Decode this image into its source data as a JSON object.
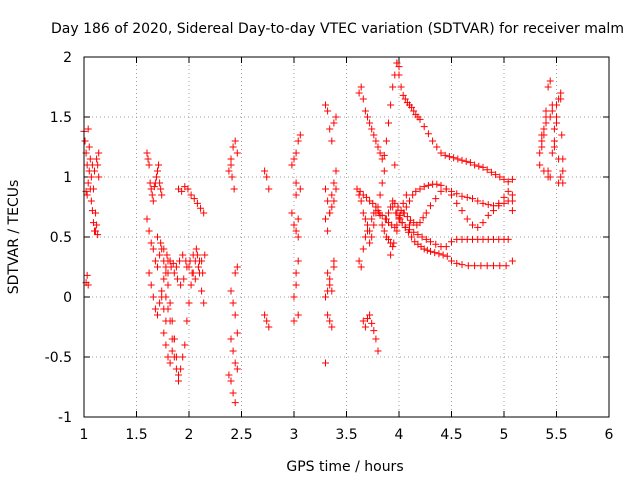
{
  "chart_data": {
    "type": "scatter",
    "title": "Day 186 of 2020, Sidereal Day-to-day VTEC variation (SDTVAR) for receiver malm",
    "xlabel": "GPS time / hours",
    "ylabel": "SDTVAR / TECUs",
    "xlim": [
      1,
      6
    ],
    "ylim": [
      -1,
      2
    ],
    "xticks": [
      "1",
      "1.5",
      "2",
      "2.5",
      "3",
      "3.5",
      "4",
      "4.5",
      "5",
      "5.5",
      "6"
    ],
    "yticks": [
      "-1",
      "-0.5",
      "0",
      "0.5",
      "1",
      "1.5",
      "2"
    ],
    "grid": true,
    "marker": "+",
    "color": "#ff0000",
    "series": [
      {
        "name": "SDTVAR",
        "x": [
          1.0,
          1.01,
          1.02,
          1.02,
          1.03,
          1.03,
          1.04,
          1.04,
          1.05,
          1.05,
          1.06,
          1.06,
          1.07,
          1.07,
          1.08,
          1.08,
          1.09,
          1.09,
          1.1,
          1.1,
          1.11,
          1.11,
          1.12,
          1.12,
          1.13,
          1.13,
          1.14,
          1.14,
          1.02,
          1.03,
          1.04,
          1.6,
          1.61,
          1.62,
          1.63,
          1.64,
          1.65,
          1.66,
          1.67,
          1.68,
          1.69,
          1.7,
          1.71,
          1.72,
          1.73,
          1.74,
          1.6,
          1.62,
          1.64,
          1.66,
          1.68,
          1.7,
          1.72,
          1.74,
          1.76,
          1.78,
          1.8,
          1.82,
          1.62,
          1.64,
          1.66,
          1.68,
          1.7,
          1.72,
          1.74,
          1.76,
          1.78,
          1.8,
          1.82,
          1.84,
          1.86,
          1.88,
          1.9,
          1.7,
          1.73,
          1.76,
          1.79,
          1.82,
          1.85,
          1.88,
          1.91,
          1.94,
          1.97,
          2.0,
          2.03,
          2.06,
          2.09,
          2.12,
          2.15,
          1.78,
          1.8,
          1.82,
          1.84,
          1.86,
          1.88,
          1.9,
          1.92,
          1.94,
          1.96,
          1.98,
          2.0,
          2.02,
          2.04,
          2.06,
          2.08,
          2.1,
          2.12,
          2.14,
          1.8,
          1.83,
          1.86,
          1.89,
          1.92,
          1.95,
          1.98,
          2.01,
          2.04,
          2.07,
          2.1,
          2.13,
          1.76,
          1.78,
          1.8,
          1.82,
          1.84,
          1.86,
          1.9,
          1.93,
          1.96,
          1.99,
          2.02,
          2.05,
          2.08,
          2.11,
          2.14,
          1.74,
          1.76,
          1.78,
          2.38,
          2.4,
          2.42,
          2.44,
          2.46,
          2.4,
          2.42,
          2.44,
          2.46,
          2.4,
          2.42,
          2.44,
          2.46,
          2.4,
          2.42,
          2.44,
          2.38,
          2.4,
          2.41,
          2.43,
          2.44,
          2.46,
          2.72,
          2.74,
          2.76,
          2.72,
          2.74,
          2.76,
          2.98,
          3.0,
          3.02,
          3.04,
          2.98,
          3.0,
          3.02,
          3.04,
          3.0,
          3.02,
          3.04,
          3.0,
          3.02,
          3.04,
          3.02,
          3.06,
          3.04,
          3.06,
          3.02,
          3.3,
          3.32,
          3.34,
          3.36,
          3.38,
          3.4,
          3.3,
          3.32,
          3.34,
          3.36,
          3.38,
          3.4,
          3.3,
          3.32,
          3.34,
          3.36,
          3.38,
          3.4,
          3.32,
          3.34,
          3.36,
          3.38,
          3.3,
          3.32,
          3.34,
          3.36,
          3.3,
          3.32,
          3.34,
          3.38,
          3.62,
          3.64,
          3.66,
          3.68,
          3.7,
          3.72,
          3.74,
          3.76,
          3.78,
          3.8,
          3.82,
          3.84,
          3.86,
          3.88,
          3.9,
          3.92,
          3.94,
          3.96,
          3.98,
          4.0,
          3.62,
          3.64,
          3.66,
          3.68,
          3.7,
          3.72,
          3.74,
          3.76,
          3.78,
          3.8,
          3.82,
          3.84,
          3.86,
          3.62,
          3.64,
          3.66,
          3.68,
          3.7,
          3.72,
          3.74,
          3.76,
          3.78,
          3.8,
          3.82,
          3.84,
          3.86,
          3.88,
          3.9,
          3.92,
          3.94,
          3.66,
          3.68,
          3.7,
          3.72,
          3.74,
          3.76,
          3.78,
          3.8,
          3.6,
          3.63,
          3.66,
          3.69,
          3.72,
          3.75,
          3.78,
          3.81,
          3.84,
          3.87,
          3.9,
          3.93,
          3.96,
          3.98,
          4.0,
          4.02,
          4.04,
          4.06,
          4.08,
          4.1,
          4.12,
          4.14,
          4.16,
          4.18,
          4.2,
          4.24,
          4.28,
          4.32,
          4.36,
          4.4,
          4.44,
          4.48,
          4.52,
          4.56,
          4.6,
          4.64,
          4.68,
          4.72,
          4.76,
          4.8,
          4.84,
          4.88,
          4.92,
          4.96,
          5.0,
          5.04,
          5.08,
          3.98,
          4.01,
          4.04,
          4.07,
          4.1,
          4.13,
          4.16,
          4.2,
          4.24,
          4.28,
          4.32,
          4.36,
          4.4,
          4.45,
          4.5,
          4.55,
          4.6,
          4.65,
          4.7,
          4.75,
          4.8,
          4.85,
          4.9,
          4.95,
          5.0,
          5.04,
          5.08,
          3.96,
          3.99,
          4.02,
          4.05,
          4.08,
          4.11,
          4.14,
          4.17,
          4.2,
          4.23,
          4.26,
          4.3,
          4.35,
          4.4,
          4.45,
          4.5,
          4.55,
          4.6,
          4.65,
          4.7,
          4.75,
          4.8,
          4.85,
          4.9,
          4.95,
          5.0,
          5.04,
          5.08,
          3.94,
          3.97,
          4.0,
          4.03,
          4.06,
          4.1,
          4.14,
          4.18,
          4.22,
          4.26,
          4.3,
          4.35,
          4.4,
          4.45,
          4.5,
          4.55,
          4.6,
          4.65,
          4.7,
          4.75,
          4.8,
          4.85,
          4.9,
          4.95,
          5.0,
          5.04,
          5.08,
          3.98,
          4.0,
          4.03,
          4.06,
          4.09,
          4.12,
          4.15,
          4.18,
          4.21,
          4.24,
          4.27,
          4.3,
          4.34,
          4.38,
          4.42,
          4.46,
          4.5,
          4.55,
          4.6,
          4.66,
          4.72,
          4.78,
          4.84,
          4.9,
          4.96,
          5.02,
          5.08,
          3.92,
          3.95,
          3.98,
          4.01,
          4.04,
          4.07,
          4.1,
          3.88,
          3.9,
          3.92,
          3.94,
          3.96,
          5.34,
          5.36,
          5.38,
          5.4,
          5.42,
          5.44,
          5.46,
          5.48,
          5.5,
          5.52,
          5.54,
          5.56,
          5.36,
          5.38,
          5.4,
          5.42,
          5.44,
          5.46,
          5.48,
          5.5,
          5.52,
          5.54,
          5.56,
          5.36,
          5.4,
          5.44,
          5.48,
          5.52,
          5.55,
          5.34,
          5.38,
          5.42,
          5.46,
          5.5,
          5.54,
          5.56
        ],
        "y": [
          1.38,
          1.3,
          1.2,
          0.88,
          1.1,
          0.85,
          1.4,
          0.95,
          1.25,
          1.05,
          0.9,
          1.15,
          0.8,
          1.0,
          0.72,
          1.1,
          0.62,
          0.9,
          0.55,
          1.05,
          0.7,
          0.55,
          1.15,
          0.6,
          1.1,
          0.52,
          1.0,
          1.2,
          0.12,
          0.18,
          0.1,
          1.2,
          1.15,
          1.1,
          0.95,
          0.9,
          0.85,
          0.8,
          0.92,
          0.95,
          1.0,
          1.05,
          1.1,
          0.95,
          0.9,
          0.85,
          0.65,
          0.55,
          0.45,
          0.4,
          0.3,
          0.25,
          0.35,
          0.4,
          0.3,
          0.25,
          0.2,
          0.3,
          0.2,
          0.1,
          0.0,
          -0.1,
          -0.15,
          -0.05,
          0.05,
          0.15,
          0.2,
          0.1,
          -0.05,
          -0.2,
          -0.35,
          -0.5,
          -0.65,
          0.5,
          0.45,
          0.4,
          0.35,
          0.3,
          0.28,
          0.25,
          0.3,
          0.35,
          0.3,
          0.25,
          0.2,
          0.15,
          0.25,
          0.3,
          0.35,
          0.0,
          -0.1,
          -0.2,
          -0.35,
          -0.5,
          -0.6,
          -0.7,
          -0.6,
          -0.5,
          -0.4,
          -0.2,
          -0.05,
          0.1,
          0.2,
          0.3,
          0.35,
          0.2,
          0.05,
          -0.05,
          0.3,
          0.25,
          0.2,
          0.15,
          0.1,
          0.15,
          0.25,
          0.3,
          0.35,
          0.4,
          0.3,
          0.2,
          -0.3,
          -0.4,
          -0.5,
          -0.55,
          -0.45,
          -0.35,
          0.9,
          0.88,
          0.92,
          0.9,
          0.85,
          0.82,
          0.78,
          0.74,
          0.7,
          0.0,
          -0.1,
          -0.2,
          1.05,
          1.15,
          1.25,
          1.3,
          1.2,
          -0.7,
          -0.8,
          -0.88,
          -0.6,
          0.05,
          -0.05,
          -0.15,
          -0.3,
          -0.35,
          -0.45,
          -0.55,
          -0.65,
          1.1,
          1.0,
          0.9,
          0.2,
          0.25,
          1.05,
          1.0,
          0.9,
          -0.15,
          -0.2,
          -0.25,
          1.1,
          1.15,
          1.2,
          1.3,
          0.7,
          0.6,
          0.55,
          0.5,
          0.0,
          0.1,
          -0.15,
          -0.2,
          0.2,
          0.3,
          0.95,
          1.35,
          0.65,
          0.9,
          0.85,
          1.6,
          1.55,
          1.4,
          1.3,
          1.45,
          1.5,
          0.9,
          0.8,
          0.7,
          0.85,
          0.95,
          1.05,
          0.65,
          0.55,
          0.7,
          0.75,
          0.8,
          0.9,
          0.2,
          0.1,
          0.05,
          0.25,
          -0.55,
          -0.15,
          -0.2,
          -0.25,
          0.0,
          0.05,
          0.15,
          0.3,
          1.7,
          1.75,
          1.65,
          1.55,
          1.5,
          1.45,
          1.4,
          1.35,
          1.3,
          1.25,
          1.2,
          1.15,
          1.18,
          1.3,
          1.45,
          1.6,
          1.75,
          1.85,
          1.95,
          1.92,
          0.3,
          0.25,
          0.4,
          0.5,
          0.55,
          0.45,
          0.5,
          0.6,
          0.7,
          0.75,
          0.85,
          0.95,
          1.05,
          0.85,
          0.8,
          0.7,
          0.65,
          0.6,
          0.55,
          0.65,
          0.7,
          0.75,
          0.72,
          0.68,
          0.6,
          0.55,
          0.5,
          0.48,
          0.45,
          0.42,
          -0.2,
          -0.25,
          -0.18,
          -0.15,
          -0.22,
          -0.28,
          -0.35,
          -0.45,
          0.9,
          0.88,
          0.85,
          0.83,
          0.8,
          0.78,
          0.75,
          0.7,
          0.68,
          0.65,
          0.62,
          0.6,
          0.58,
          1.95,
          1.85,
          1.75,
          1.68,
          1.65,
          1.62,
          1.6,
          1.58,
          1.55,
          1.52,
          1.5,
          1.48,
          1.42,
          1.36,
          1.3,
          1.25,
          1.2,
          1.18,
          1.17,
          1.16,
          1.15,
          1.14,
          1.13,
          1.12,
          1.1,
          1.09,
          1.08,
          1.06,
          1.04,
          1.02,
          1.0,
          0.98,
          0.96,
          0.98,
          0.6,
          0.65,
          0.7,
          0.75,
          0.8,
          0.85,
          0.88,
          0.9,
          0.92,
          0.93,
          0.94,
          0.94,
          0.93,
          0.9,
          0.88,
          0.86,
          0.84,
          0.83,
          0.82,
          0.8,
          0.78,
          0.77,
          0.76,
          0.76,
          0.78,
          0.8,
          0.85,
          0.78,
          0.75,
          0.72,
          0.7,
          0.67,
          0.64,
          0.62,
          0.6,
          0.62,
          0.66,
          0.7,
          0.76,
          0.82,
          0.88,
          0.9,
          0.85,
          0.78,
          0.72,
          0.65,
          0.6,
          0.58,
          0.62,
          0.68,
          0.72,
          0.78,
          0.83,
          0.88,
          0.8,
          0.75,
          0.7,
          0.65,
          0.62,
          0.58,
          0.56,
          0.54,
          0.52,
          0.5,
          0.48,
          0.46,
          0.44,
          0.42,
          0.42,
          0.46,
          0.48,
          0.48,
          0.48,
          0.48,
          0.48,
          0.48,
          0.48,
          0.48,
          0.48,
          0.48,
          0.48,
          0.72,
          0.7,
          0.66,
          0.62,
          0.58,
          0.54,
          0.5,
          0.46,
          0.44,
          0.42,
          0.4,
          0.39,
          0.38,
          0.37,
          0.36,
          0.35,
          0.34,
          0.3,
          0.28,
          0.27,
          0.26,
          0.26,
          0.26,
          0.26,
          0.26,
          0.26,
          0.26,
          0.3,
          0.35,
          0.45,
          0.55,
          0.68,
          0.78,
          0.85,
          0.6,
          0.65,
          0.7,
          0.75,
          0.8,
          1.1,
          1.2,
          1.3,
          1.4,
          1.5,
          1.05,
          1.0,
          1.2,
          1.3,
          1.45,
          1.65,
          1.7,
          1.15,
          1.25,
          1.35,
          1.55,
          1.75,
          1.8,
          1.6,
          1.4,
          1.5,
          0.95,
          1.0,
          1.05,
          1.35,
          1.45,
          1.5,
          1.25,
          1.15,
          1.35,
          1.1,
          1.05,
          1.0,
          1.55,
          1.6,
          1.65,
          0.95
        ]
      }
    ]
  }
}
